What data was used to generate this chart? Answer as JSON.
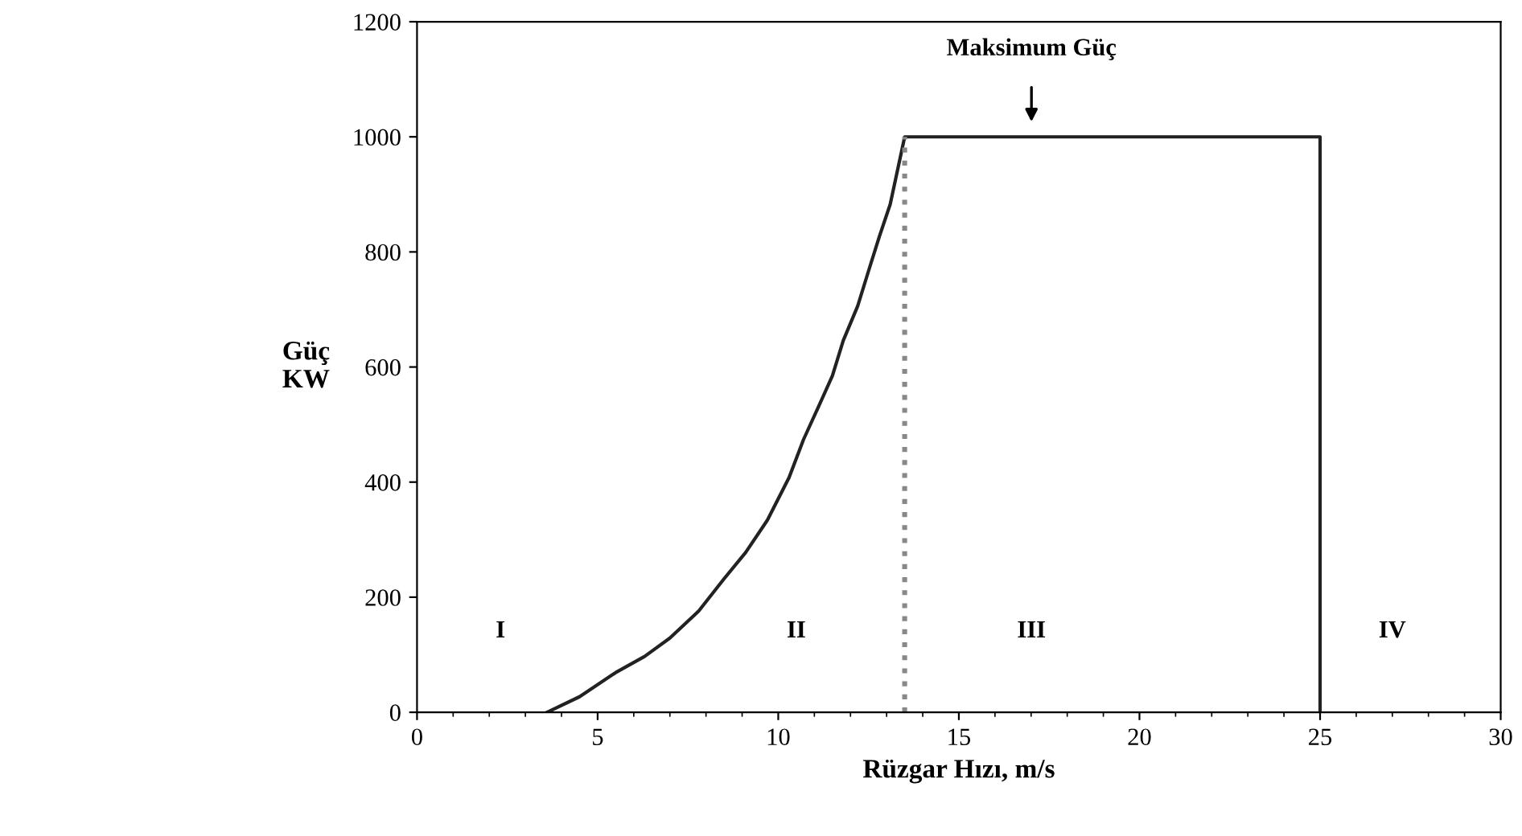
{
  "chart_data": {
    "type": "line",
    "xlabel": "Rüzgar Hızı, m/s",
    "ylabel": "Güç\nKW",
    "series": [
      {
        "color": "#222222",
        "line_style": "solid",
        "x": [
          3.6,
          4.5,
          5.5,
          6.3,
          7.0,
          7.8,
          8.5,
          9.1,
          9.7,
          10.3,
          10.7,
          11.1,
          11.5,
          11.8,
          12.2,
          12.5,
          12.8,
          13.1,
          13.5,
          25,
          25
        ],
        "values": [
          0,
          27,
          69,
          97,
          129,
          176,
          232,
          278,
          334,
          408,
          474,
          529,
          585,
          646,
          706,
          767,
          827,
          883,
          1000,
          1000,
          0
        ]
      },
      {
        "color": "#888888",
        "line_style": "dotted",
        "x": [
          13.5,
          13.5
        ],
        "values": [
          0,
          1000
        ]
      }
    ],
    "annotations": [
      "Maksimum Güç",
      "I",
      "II",
      "III",
      "IV"
    ],
    "xlim": [
      0,
      30
    ],
    "xticks": [
      0,
      5,
      10,
      15,
      20,
      25,
      30
    ],
    "ylim": [
      0,
      1200
    ],
    "yticks": [
      0,
      200,
      400,
      600,
      800,
      1000,
      1200
    ],
    "grid": false,
    "legend": false,
    "marker": "none"
  }
}
